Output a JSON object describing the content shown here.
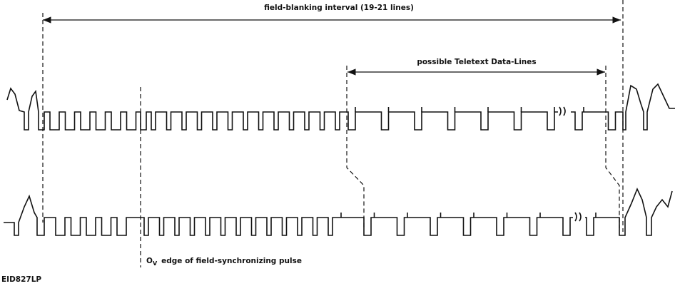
{
  "labels": {
    "interval": "field-blanking interval (19-21 lines)",
    "teletext": "possible Teletext Data-Lines",
    "edge_symbol": "O",
    "edge_sub": "V",
    "edge_text": "edge of field-synchronizing pulse",
    "code": "EID827LP"
  }
}
